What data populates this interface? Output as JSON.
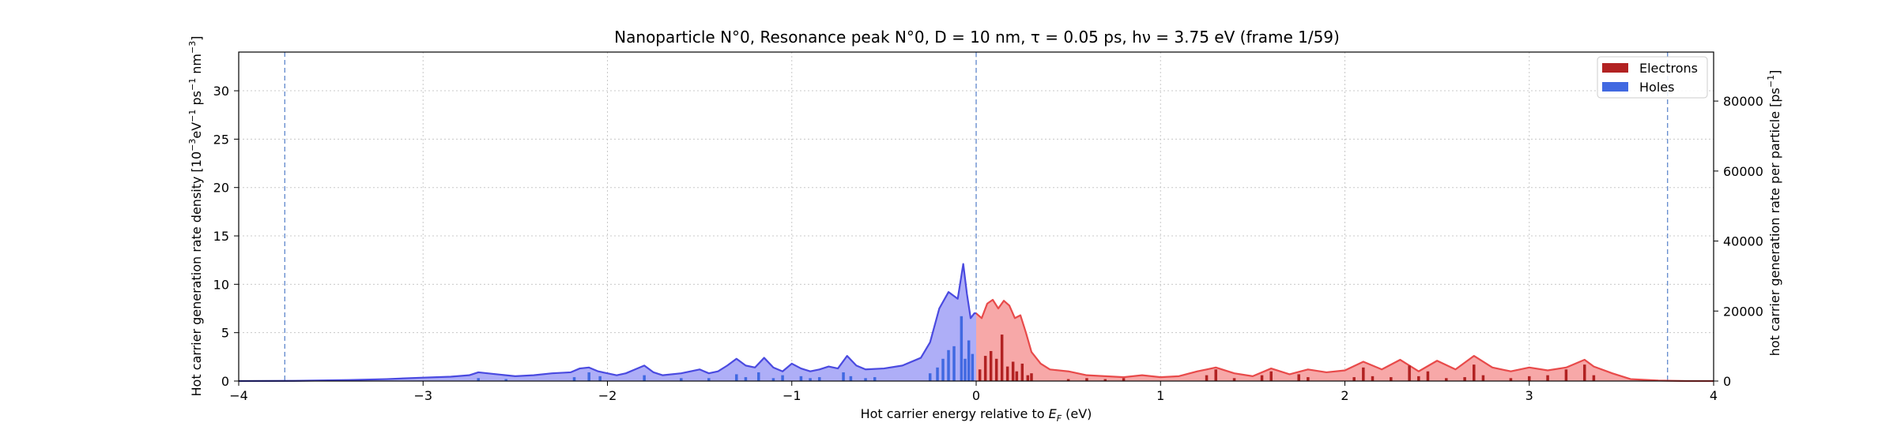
{
  "chart_data": {
    "type": "area",
    "title": "Nanoparticle N°0, Resonance peak N°0, D = 10 nm, τ = 0.05 ps, hν = 3.75 eV   (frame 1/59)",
    "xlabel": "Hot carrier energy relative to E_F (eV)",
    "ylabel": "Hot carrier generation rate density [10⁻³eV⁻¹ps⁻¹nm⁻³]",
    "ylabel_right": "hot carrier generation rate per particle [ps⁻¹]",
    "xlim": [
      -4,
      4
    ],
    "ylim": [
      0,
      34
    ],
    "ylim_right": [
      0,
      94000
    ],
    "xticks": [
      -4,
      -3,
      -2,
      -1,
      0,
      1,
      2,
      3,
      4
    ],
    "xtick_labels": [
      "−4",
      "−3",
      "−2",
      "−1",
      "0",
      "1",
      "2",
      "3",
      "4"
    ],
    "yticks": [
      0,
      5,
      10,
      15,
      20,
      25,
      30
    ],
    "ytick_labels": [
      "0",
      "5",
      "10",
      "15",
      "20",
      "25",
      "30"
    ],
    "yticks_right": [
      0,
      20000,
      40000,
      60000,
      80000
    ],
    "ytick_labels_right": [
      "0",
      "20000",
      "40000",
      "60000",
      "80000"
    ],
    "grid": true,
    "legend_position": "top-right",
    "vlines": [
      -3.75,
      0,
      3.75
    ],
    "colors": {
      "electrons_fill": "#f7a8a8",
      "electrons_line": "#e84a4a",
      "electrons_bar": "#b22222",
      "holes_fill": "#aeaef7",
      "holes_line": "#4a4ae0",
      "holes_bar": "#4169e1",
      "vline": "#6a8fd0",
      "grid": "#c8c8c8"
    },
    "series": [
      {
        "name": "Holes",
        "x": [
          -4.0,
          -3.7,
          -3.4,
          -3.2,
          -3.0,
          -2.85,
          -2.75,
          -2.7,
          -2.6,
          -2.5,
          -2.4,
          -2.3,
          -2.2,
          -2.15,
          -2.1,
          -2.05,
          -2.0,
          -1.95,
          -1.9,
          -1.85,
          -1.8,
          -1.75,
          -1.7,
          -1.6,
          -1.5,
          -1.45,
          -1.4,
          -1.35,
          -1.3,
          -1.25,
          -1.2,
          -1.15,
          -1.1,
          -1.05,
          -1.0,
          -0.95,
          -0.9,
          -0.85,
          -0.8,
          -0.75,
          -0.7,
          -0.65,
          -0.6,
          -0.5,
          -0.4,
          -0.3,
          -0.25,
          -0.2,
          -0.15,
          -0.1,
          -0.07,
          -0.05,
          -0.03,
          -0.01,
          0.0
        ],
        "values": [
          0.0,
          0.02,
          0.1,
          0.2,
          0.35,
          0.45,
          0.6,
          0.9,
          0.7,
          0.5,
          0.6,
          0.8,
          0.9,
          1.3,
          1.4,
          1.0,
          0.8,
          0.6,
          0.8,
          1.2,
          1.6,
          0.9,
          0.6,
          0.8,
          1.2,
          0.8,
          1.0,
          1.6,
          2.3,
          1.6,
          1.4,
          2.4,
          1.4,
          1.0,
          1.8,
          1.3,
          1.0,
          1.2,
          1.5,
          1.3,
          2.6,
          1.6,
          1.2,
          1.3,
          1.6,
          2.4,
          4.0,
          7.5,
          9.2,
          8.5,
          12.1,
          9.0,
          6.5,
          7.0,
          7.0
        ]
      },
      {
        "name": "Electrons",
        "x": [
          0.0,
          0.03,
          0.06,
          0.09,
          0.12,
          0.15,
          0.18,
          0.21,
          0.24,
          0.27,
          0.3,
          0.35,
          0.4,
          0.5,
          0.6,
          0.7,
          0.8,
          0.9,
          1.0,
          1.1,
          1.2,
          1.3,
          1.4,
          1.5,
          1.6,
          1.7,
          1.8,
          1.9,
          2.0,
          2.1,
          2.2,
          2.3,
          2.4,
          2.5,
          2.6,
          2.7,
          2.8,
          2.9,
          3.0,
          3.1,
          3.2,
          3.3,
          3.35,
          3.45,
          3.55,
          3.7,
          3.85,
          4.0
        ],
        "values": [
          7.0,
          6.5,
          8.0,
          8.4,
          7.5,
          8.3,
          7.8,
          6.5,
          6.8,
          5.0,
          3.0,
          1.8,
          1.2,
          1.0,
          0.6,
          0.5,
          0.4,
          0.6,
          0.4,
          0.5,
          1.0,
          1.4,
          0.8,
          0.5,
          1.3,
          0.7,
          1.2,
          0.9,
          1.1,
          2.0,
          1.2,
          2.2,
          1.0,
          2.1,
          1.2,
          2.6,
          1.4,
          1.0,
          1.4,
          1.1,
          1.4,
          2.2,
          1.5,
          0.8,
          0.2,
          0.05,
          0.0,
          0.0
        ]
      }
    ],
    "bars": {
      "holes": {
        "x": [
          -2.7,
          -2.55,
          -2.18,
          -2.1,
          -2.04,
          -1.8,
          -1.6,
          -1.45,
          -1.3,
          -1.25,
          -1.18,
          -1.1,
          -1.05,
          -0.95,
          -0.9,
          -0.85,
          -0.72,
          -0.68,
          -0.6,
          -0.55,
          -0.25,
          -0.21,
          -0.18,
          -0.15,
          -0.12,
          -0.08,
          -0.06,
          -0.04,
          -0.02
        ],
        "values": [
          0.3,
          0.2,
          0.4,
          0.9,
          0.5,
          0.6,
          0.3,
          0.3,
          0.7,
          0.4,
          0.9,
          0.3,
          0.6,
          0.5,
          0.3,
          0.4,
          0.9,
          0.5,
          0.3,
          0.4,
          0.8,
          1.4,
          2.3,
          3.2,
          3.6,
          6.7,
          2.3,
          4.2,
          2.8
        ]
      },
      "electrons": {
        "x": [
          0.02,
          0.05,
          0.08,
          0.11,
          0.14,
          0.17,
          0.2,
          0.22,
          0.25,
          0.28,
          0.3,
          0.5,
          0.6,
          0.7,
          0.8,
          1.25,
          1.3,
          1.4,
          1.55,
          1.6,
          1.75,
          1.8,
          2.05,
          2.1,
          2.15,
          2.25,
          2.35,
          2.4,
          2.45,
          2.55,
          2.65,
          2.7,
          2.75,
          2.9,
          3.0,
          3.1,
          3.2,
          3.3,
          3.35
        ],
        "values": [
          1.2,
          2.6,
          3.1,
          2.3,
          4.8,
          1.5,
          2.0,
          1.0,
          1.8,
          0.6,
          0.8,
          0.2,
          0.3,
          0.2,
          0.3,
          0.6,
          1.2,
          0.3,
          0.6,
          1.0,
          0.7,
          0.4,
          0.4,
          1.4,
          0.5,
          0.4,
          1.6,
          0.5,
          1.0,
          0.3,
          0.4,
          1.7,
          0.6,
          0.3,
          0.5,
          0.6,
          1.2,
          1.7,
          0.6
        ]
      }
    },
    "legend": [
      "Electrons",
      "Holes"
    ]
  }
}
